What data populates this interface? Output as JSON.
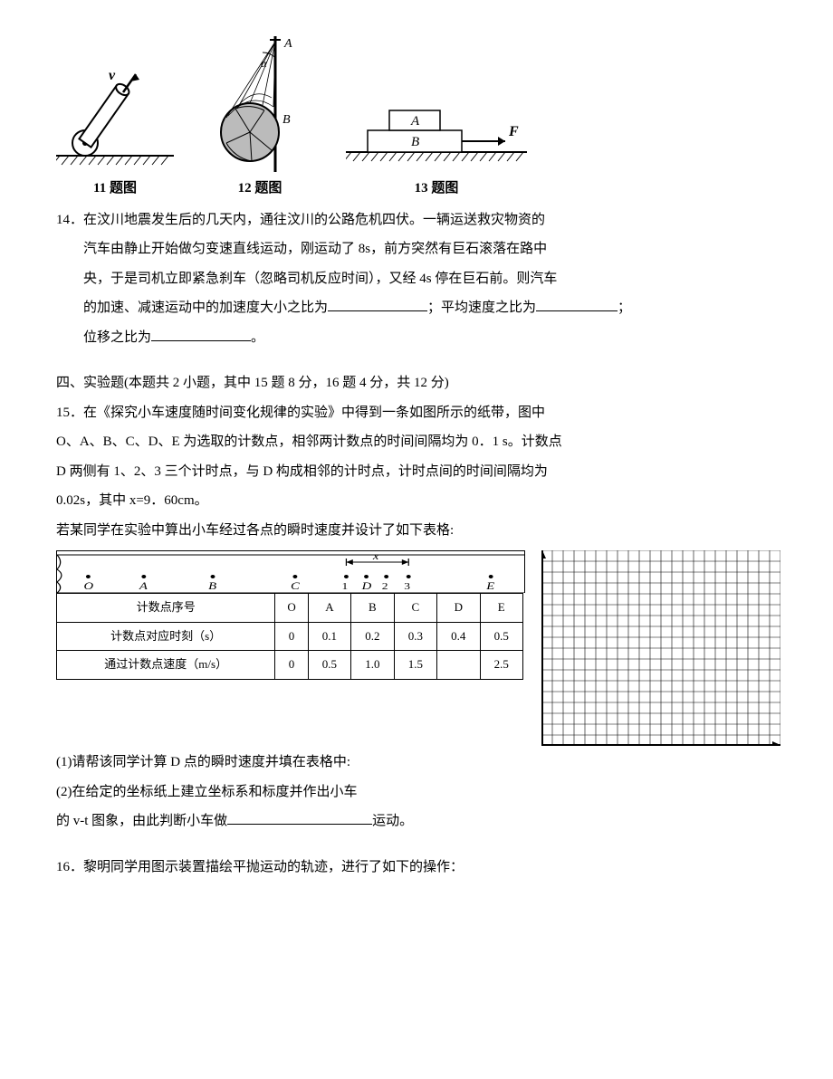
{
  "figures": {
    "fig11": {
      "caption": "11 题图",
      "velocity_label": "v"
    },
    "fig12": {
      "caption": "12 题图",
      "pointA": "A",
      "pointB": "B",
      "angle": "α"
    },
    "fig13": {
      "caption": "13 题图",
      "blockA": "A",
      "blockB": "B",
      "force": "F"
    }
  },
  "q14": {
    "number": "14．",
    "line1": "在汶川地震发生后的几天内，通往汶川的公路危机四伏。一辆运送救灾物资的",
    "line2": "汽车由静止开始做匀变速直线运动，刚运动了 8s，前方突然有巨石滚落在路中",
    "line3": "央，于是司机立即紧急刹车（忽略司机反应时间），又经 4s 停在巨石前。则汽车",
    "line4a": "的加速、减速运动中的加速度大小之比为",
    "line4b": "；平均速度之比为",
    "line4c": "；",
    "line5a": "位移之比为",
    "line5b": "。"
  },
  "sec4": {
    "heading": "四、实验题(本题共 2 小题，其中 15 题 8 分，16 题 4 分，共 12 分)"
  },
  "q15": {
    "number": "15．",
    "p1": "在《探究小车速度随时间变化规律的实验》中得到一条如图所示的纸带，图中",
    "p2": "O、A、B、C、D、E 为选取的计数点，相邻两计数点的时间间隔均为 0．1 s。计数点",
    "p3": "D 两侧有 1、2、3 三个计时点，与 D 构成相邻的计时点，计时点间的时间间隔均为",
    "p4": "0.02s，其中 x=9．60cm。",
    "p5": "若某同学在实验中算出小车经过各点的瞬时速度并设计了如下表格:",
    "tape": {
      "points": [
        "O",
        "A",
        "B",
        "C",
        "1",
        "D",
        "2",
        "3",
        "E"
      ],
      "x_label": "x"
    },
    "table": {
      "headers": [
        "计数点序号",
        "O",
        "A",
        "B",
        "C",
        "D",
        "E"
      ],
      "row_time_label": "计数点对应时刻（s）",
      "row_time": [
        "0",
        "0.1",
        "0.2",
        "0.3",
        "0.4",
        "0.5"
      ],
      "row_v_label": "通过计数点速度（m/s）",
      "row_v": [
        "0",
        "0.5",
        "1.0",
        "1.5",
        "",
        "2.5"
      ]
    },
    "sub1": "(1)请帮该同学计算 D 点的瞬时速度并填在表格中:",
    "sub2": "(2)在给定的坐标纸上建立坐标系和标度并作出小车",
    "sub3a": "的 v-t 图象，由此判断小车做",
    "sub3b": "运动。"
  },
  "q16": {
    "number": "16．",
    "text": "黎明同学用图示装置描绘平抛运动的轨迹，进行了如下的操作："
  },
  "grid": {
    "cols": 22,
    "rows": 18,
    "cell": 12,
    "line_color": "#000000",
    "bg": "#ffffff",
    "axis_color": "#000000"
  },
  "colors": {
    "text": "#000000",
    "bg": "#ffffff",
    "stroke": "#000000",
    "hatch": "#000000"
  }
}
